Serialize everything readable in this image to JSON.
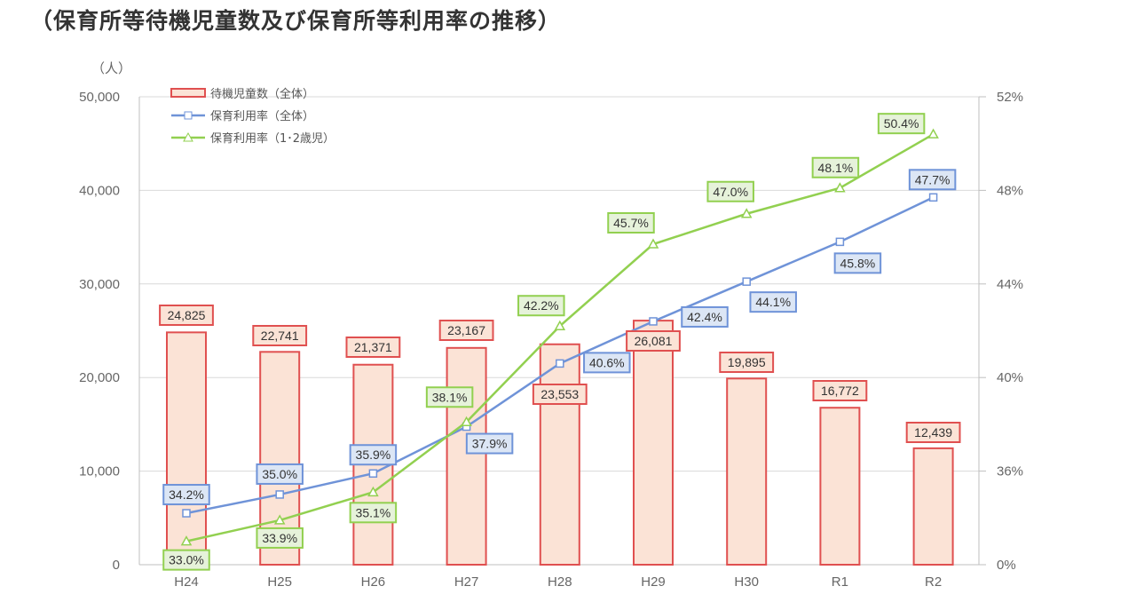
{
  "title": "（保育所等待機児童数及び保育所等利用率の推移）",
  "chart_data": {
    "type": "bar+line",
    "title": "（保育所等待機児童数及び保育所等利用率の推移）",
    "categories": [
      "H24",
      "H25",
      "H26",
      "H27",
      "H28",
      "H29",
      "H30",
      "R1",
      "R2"
    ],
    "y_left": {
      "unit_label": "（人）",
      "range": [
        0,
        50000
      ],
      "ticks": [
        "0",
        "10,000",
        "20,000",
        "30,000",
        "40,000",
        "50,000"
      ],
      "tick_values": [
        0,
        10000,
        20000,
        30000,
        40000,
        50000
      ]
    },
    "y_right": {
      "range": [
        32,
        52
      ],
      "ticks": [
        "0%",
        "36%",
        "40%",
        "44%",
        "48%",
        "52%"
      ],
      "tick_values": [
        32,
        36,
        40,
        44,
        48,
        52
      ],
      "broken_axis": true
    },
    "grid": true,
    "legend_position": "top-left",
    "series": [
      {
        "name": "待機児童数（全体）",
        "type": "bar",
        "axis": "left",
        "color": "#e05050",
        "fill": "#fbe3d6",
        "values": [
          24825,
          22741,
          21371,
          23167,
          23553,
          26081,
          19895,
          16772,
          12439
        ],
        "labels": [
          "24,825",
          "22,741",
          "21,371",
          "23,167",
          "23,553",
          "26,081",
          "19,895",
          "16,772",
          "12,439"
        ]
      },
      {
        "name": "保育利用率（全体）",
        "type": "line",
        "marker": "square",
        "axis": "right",
        "color": "#6f93d8",
        "label_fill": "#dce6f5",
        "values": [
          34.2,
          35.0,
          35.9,
          37.9,
          40.6,
          42.4,
          44.1,
          45.8,
          47.7
        ],
        "labels": [
          "34.2%",
          "35.0%",
          "35.9%",
          "37.9%",
          "40.6%",
          "42.4%",
          "44.1%",
          "45.8%",
          "47.7%"
        ]
      },
      {
        "name": "保育利用率（1･2歳児）",
        "type": "line",
        "marker": "triangle",
        "axis": "right",
        "color": "#92d050",
        "label_fill": "#e6f2da",
        "values": [
          33.0,
          33.9,
          35.1,
          38.1,
          42.2,
          45.7,
          47.0,
          48.1,
          50.4
        ],
        "labels": [
          "33.0%",
          "33.9%",
          "35.1%",
          "38.1%",
          "42.2%",
          "45.7%",
          "47.0%",
          "48.1%",
          "50.4%"
        ]
      }
    ]
  }
}
